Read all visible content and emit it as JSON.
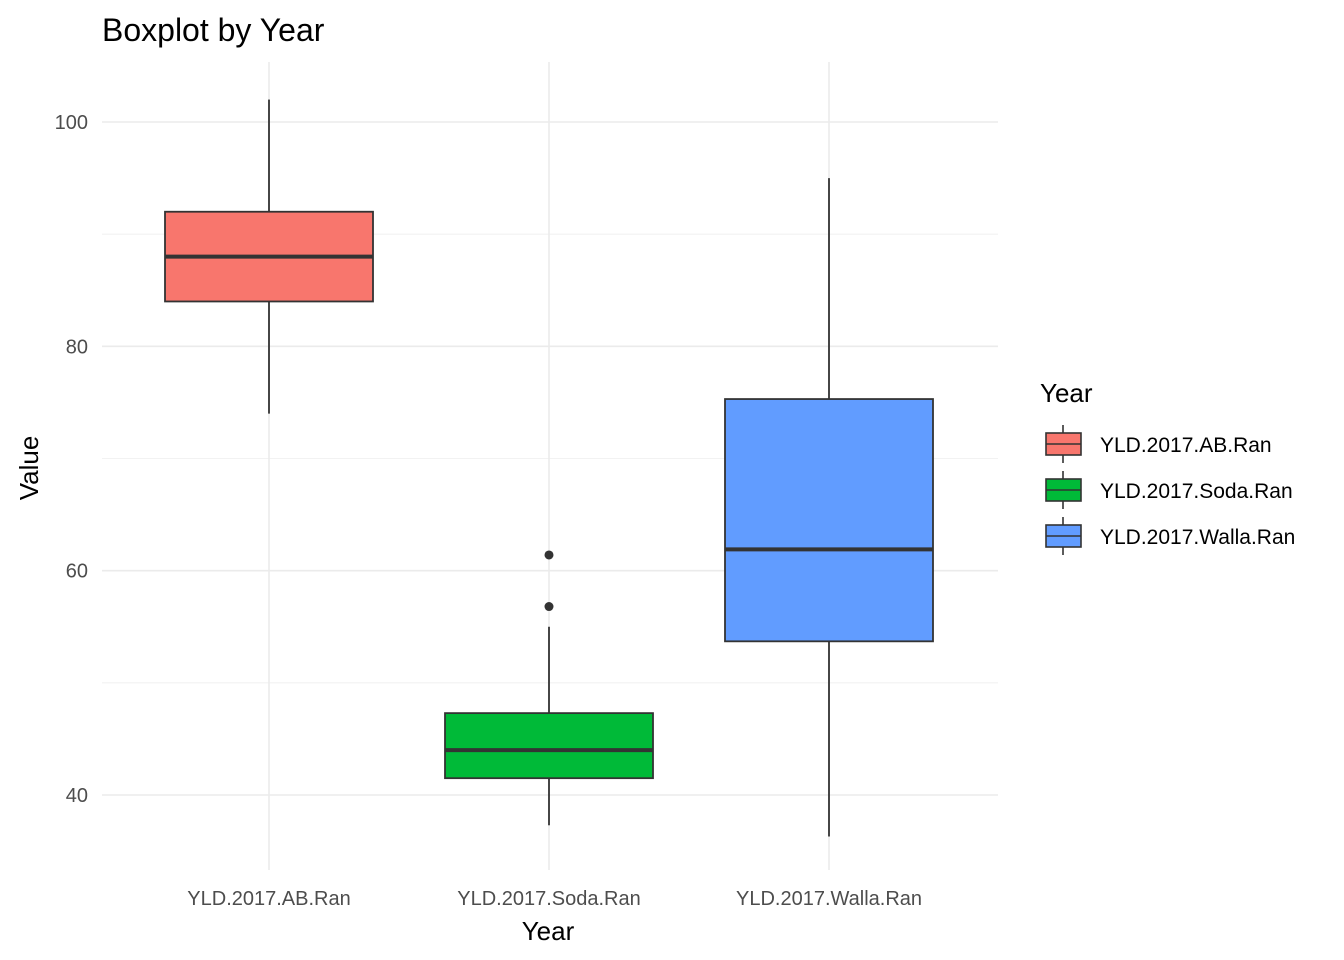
{
  "chart_data": {
    "type": "boxplot",
    "title": "Boxplot by Year",
    "xlabel": "Year",
    "ylabel": "Value",
    "ylim": [
      33,
      105
    ],
    "y_ticks": [
      40,
      60,
      80,
      100
    ],
    "y_tick_labels": [
      "40",
      "60",
      "80",
      "100"
    ],
    "grid": true,
    "legend": {
      "title": "Year",
      "position": "right"
    },
    "categories": [
      "YLD.2017.AB.Ran",
      "YLD.2017.Soda.Ran",
      "YLD.2017.Walla.Ran"
    ],
    "boxes": [
      {
        "category": "YLD.2017.AB.Ran",
        "color": "#F8766D",
        "whisker_low": 74,
        "q1": 84,
        "median": 88,
        "q3": 92,
        "whisker_high": 102,
        "outliers": []
      },
      {
        "category": "YLD.2017.Soda.Ran",
        "color": "#00BA38",
        "whisker_low": 37.3,
        "q1": 41.5,
        "median": 44,
        "q3": 47.3,
        "whisker_high": 55,
        "outliers": [
          56.8,
          61.4
        ]
      },
      {
        "category": "YLD.2017.Walla.Ran",
        "color": "#619CFF",
        "whisker_low": 36.3,
        "q1": 53.7,
        "median": 61.9,
        "q3": 75.3,
        "whisker_high": 95,
        "outliers": []
      }
    ]
  }
}
